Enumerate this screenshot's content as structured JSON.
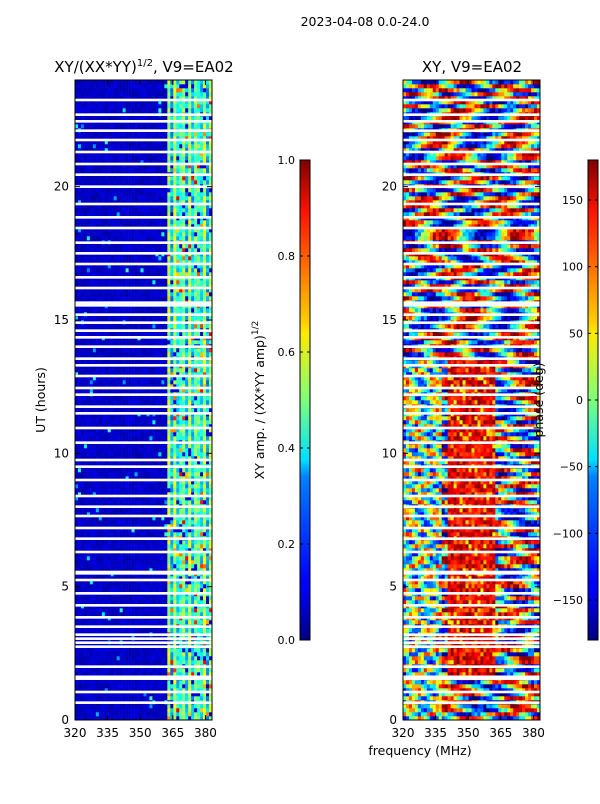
{
  "suptitle": "2023-04-08 0.0-24.0",
  "chart_data": [
    {
      "type": "heatmap",
      "title": "XY/(XX*YY)^(1/2), V9=EA02",
      "title_main": "XY/(XX*YY)",
      "title_sup": "1/2",
      "title_tail": ", V9=EA02",
      "xlabel": "",
      "ylabel": "UT (hours)",
      "xlim": [
        320,
        383
      ],
      "ylim": [
        0,
        24
      ],
      "xticks": [
        "320",
        "335",
        "350",
        "365",
        "380"
      ],
      "xtick_values": [
        320,
        335,
        350,
        365,
        380
      ],
      "yticks": [
        "0",
        "5",
        "10",
        "15",
        "20"
      ],
      "ytick_values": [
        0,
        5,
        10,
        15,
        20
      ],
      "colormap": "jet",
      "colorbar": {
        "label": "XY amp. / (XX*YY amp)^(1/2)",
        "label_main": "XY amp. / (XX*YY amp)",
        "label_sup": "1/2",
        "range": [
          0.0,
          1.0
        ],
        "ticks": [
          "0.0",
          "0.2",
          "0.4",
          "0.6",
          "0.8",
          "1.0"
        ],
        "tick_values": [
          0.0,
          0.2,
          0.4,
          0.6,
          0.8,
          1.0
        ]
      }
    },
    {
      "type": "heatmap",
      "title": "XY, V9=EA02",
      "xlabel": "frequency (MHz)",
      "ylabel": "",
      "xlim": [
        320,
        383
      ],
      "ylim": [
        0,
        24
      ],
      "xticks": [
        "320",
        "335",
        "350",
        "365",
        "380"
      ],
      "xtick_values": [
        320,
        335,
        350,
        365,
        380
      ],
      "yticks": [
        "0",
        "5",
        "10",
        "15",
        "20"
      ],
      "ytick_values": [
        0,
        5,
        10,
        15,
        20
      ],
      "colormap": "jet",
      "colorbar": {
        "label": "phase (deg)",
        "range": [
          -180,
          180
        ],
        "ticks": [
          "−150",
          "−100",
          "−50",
          "0",
          "50",
          "100",
          "150"
        ],
        "tick_values": [
          -150,
          -100,
          -50,
          0,
          50,
          100,
          150
        ]
      }
    }
  ],
  "flagged_hours": [
    0.65,
    1.05,
    1.55,
    1.62,
    2.0,
    2.75,
    2.9,
    3.05,
    3.2,
    3.5,
    3.85,
    4.3,
    4.75,
    5.25,
    5.5,
    5.55,
    6.3,
    6.8,
    7.2,
    7.65,
    8.0,
    8.4,
    9.0,
    9.5,
    9.75,
    10.4,
    10.95,
    11.5,
    11.75,
    12.2,
    12.45,
    12.9,
    13.3,
    13.55,
    14.0,
    14.35,
    14.6,
    14.9,
    15.2,
    15.55,
    15.65,
    16.2,
    16.6,
    17.1,
    17.5,
    17.9,
    18.45,
    18.85,
    19.35,
    20.0,
    20.45,
    20.85,
    21.3,
    21.75,
    22.1,
    22.45,
    22.7,
    23.25
  ]
}
